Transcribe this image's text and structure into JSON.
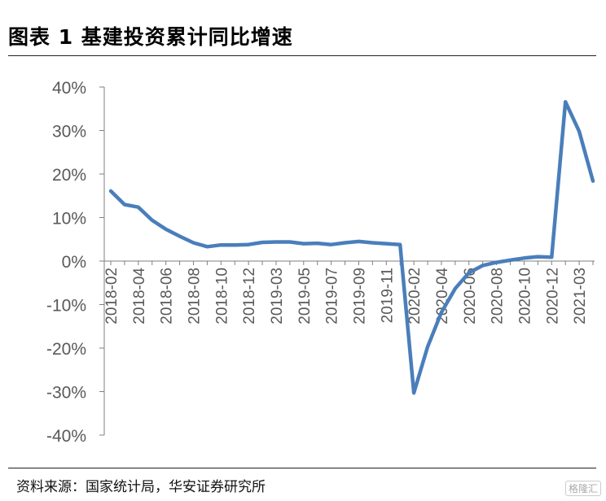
{
  "header": {
    "title": "图表 1  基建投资累计同比增速"
  },
  "footer": {
    "source": "资料来源：国家统计局，华安证券研究所",
    "watermark": "格隆汇"
  },
  "colors": {
    "line": "#4a7ebb",
    "axis": "#7f7f7f",
    "text": "#595959"
  },
  "chart_data": {
    "type": "line",
    "title": "",
    "xlabel": "",
    "ylabel": "",
    "ylim": [
      -0.4,
      0.4
    ],
    "y_ticks": [
      "40%",
      "30%",
      "20%",
      "10%",
      "0%",
      "-10%",
      "-20%",
      "-30%",
      "-40%"
    ],
    "y_tick_values": [
      0.4,
      0.3,
      0.2,
      0.1,
      0,
      -0.1,
      -0.2,
      -0.3,
      -0.4
    ],
    "x_tick_labels": [
      "2018-02",
      "2018-04",
      "2018-06",
      "2018-08",
      "2018-10",
      "2018-12",
      "2019-03",
      "2019-05",
      "2019-07",
      "2019-09",
      "2019-11",
      "2020-02",
      "2020-04",
      "2020-06",
      "2020-08",
      "2020-10",
      "2020-12",
      "2021-03"
    ],
    "grid": false,
    "legend": "none",
    "x": [
      "2018-02",
      "2018-03",
      "2018-04",
      "2018-05",
      "2018-06",
      "2018-07",
      "2018-08",
      "2018-09",
      "2018-10",
      "2018-11",
      "2018-12",
      "2019-02",
      "2019-03",
      "2019-04",
      "2019-05",
      "2019-06",
      "2019-07",
      "2019-08",
      "2019-09",
      "2019-10",
      "2019-11",
      "2019-12",
      "2020-02",
      "2020-03",
      "2020-04",
      "2020-05",
      "2020-06",
      "2020-07",
      "2020-08",
      "2020-09",
      "2020-10",
      "2020-11",
      "2020-12",
      "2021-02",
      "2021-03",
      "2021-04"
    ],
    "series": [
      {
        "values": [
          0.161,
          0.13,
          0.124,
          0.094,
          0.073,
          0.057,
          0.042,
          0.033,
          0.037,
          0.037,
          0.038,
          0.043,
          0.044,
          0.044,
          0.04,
          0.041,
          0.038,
          0.042,
          0.045,
          0.042,
          0.04,
          0.038,
          -0.303,
          -0.197,
          -0.118,
          -0.063,
          -0.027,
          -0.01,
          -0.003,
          0.002,
          0.007,
          0.01,
          0.009,
          0.366,
          0.298,
          0.184
        ]
      }
    ]
  }
}
